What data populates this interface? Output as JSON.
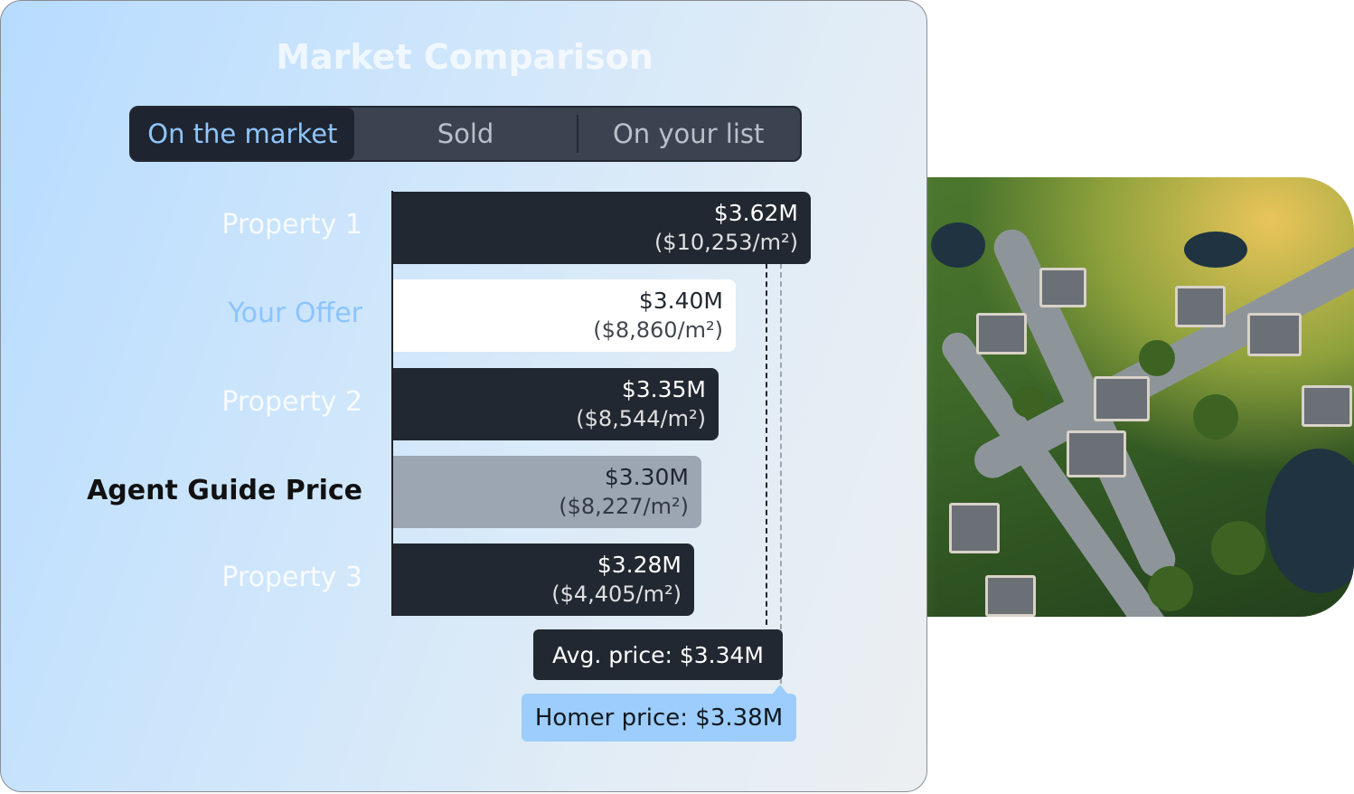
{
  "title": "Market Comparison",
  "tabs": [
    {
      "label": "On the market",
      "active": true
    },
    {
      "label": "Sold",
      "active": false
    },
    {
      "label": "On your list",
      "active": false
    }
  ],
  "rows": [
    {
      "label": "Property 1",
      "price": "$3.62M",
      "per_sqm": "($10,253/m²)",
      "value": 3.62,
      "style": "dark"
    },
    {
      "label": "Your Offer",
      "price": "$3.40M",
      "per_sqm": "($8,860/m²)",
      "value": 3.4,
      "style": "offer"
    },
    {
      "label": "Property 2",
      "price": "$3.35M",
      "per_sqm": "($8,544/m²)",
      "value": 3.35,
      "style": "dark"
    },
    {
      "label": "Agent Guide Price",
      "price": "$3.30M",
      "per_sqm": "($8,227/m²)",
      "value": 3.3,
      "style": "guide"
    },
    {
      "label": "Property 3",
      "price": "$3.28M",
      "per_sqm": "($4,405/m²)",
      "value": 3.28,
      "style": "dark"
    }
  ],
  "avg": {
    "label": "Avg. price: $3.34M",
    "value": 3.34
  },
  "homer": {
    "label": "Homer price: $3.38M",
    "value": 3.38
  },
  "colors": {
    "accent": "#8fc6ff",
    "dark_bar": "#222831",
    "guide_bar": "#9ca6b3",
    "homer": "#9ccdfc"
  }
}
